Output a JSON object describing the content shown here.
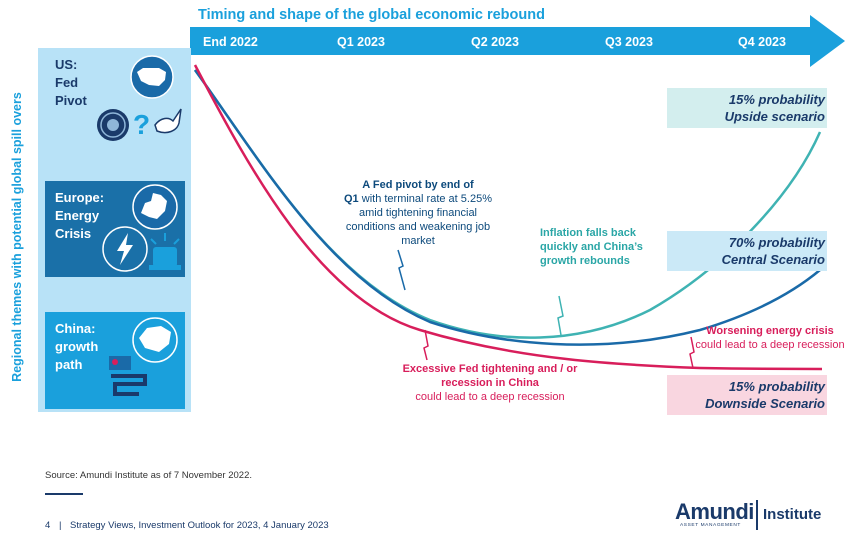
{
  "title": "Timing and shape of the global economic rebound",
  "timeline": [
    "End 2022",
    "Q1 2023",
    "Q2 2023",
    "Q3 2023",
    "Q4 2023"
  ],
  "sidebar_label": "Regional themes with potential global spill overs",
  "themes": [
    {
      "label": "US:\nFed\nPivot"
    },
    {
      "label": "Europe:\nEnergy\nCrisis"
    },
    {
      "label": "China:\ngrowth\npath"
    }
  ],
  "annotations": {
    "fed_bold_1": "A Fed pivot by end of",
    "fed_bold_2": "Q1",
    "fed_rest": " with terminal rate at 5.25% amid tightening financial conditions and weakening job market",
    "inflation": "Inflation falls back quickly and China’s growth rebounds",
    "excessive_bold": "Excessive Fed tightening and / or recession in China",
    "excessive_rest": "could lead to a deep recession",
    "energy_bold": "Worsening energy crisis",
    "energy_rest": "could lead to a deep recession"
  },
  "scenarios": {
    "upside_1": "15% probability",
    "upside_2": "Upside scenario",
    "central_1": "70% probability",
    "central_2": "Central Scenario",
    "downside_1": "15% probability",
    "downside_2": "Downside Scenario"
  },
  "colors": {
    "upside": "#3fb3b3",
    "central": "#1a6aa8",
    "downside": "#d81e5b",
    "accent": "#1aa0dc"
  },
  "source": "Source: Amundi Institute as of 7 November 2022.",
  "footer": {
    "page": "4",
    "text": "Strategy Views, Investment Outlook for 2023, 4 January 2023"
  },
  "logo": {
    "brand": "Amundi",
    "sub": "ASSET MANAGEMENT",
    "institute": "Institute"
  }
}
